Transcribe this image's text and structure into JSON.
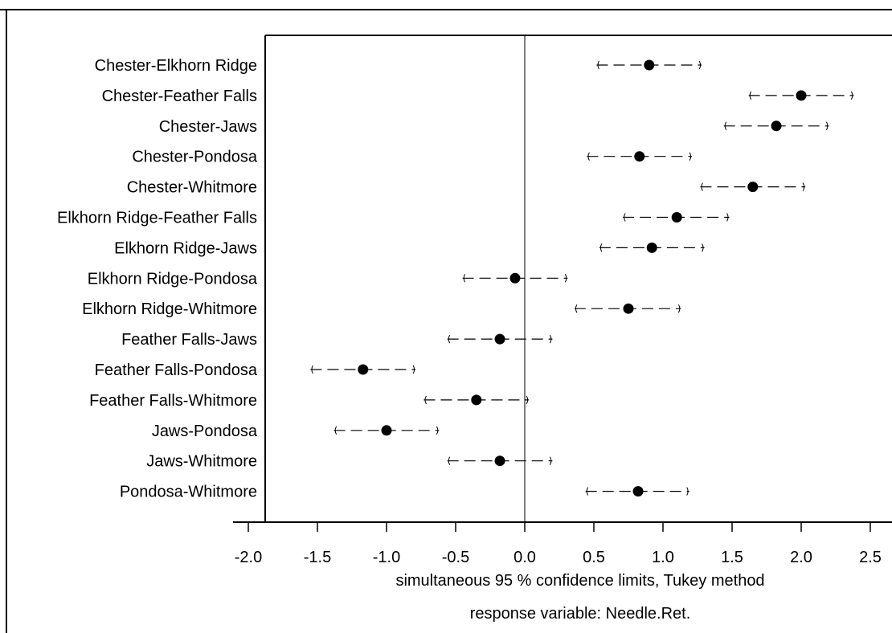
{
  "chart_data": {
    "type": "scatter",
    "title": "",
    "xlabel": "",
    "ylabel": "",
    "xlim": [
      -2.0,
      2.5
    ],
    "x_ticks": [
      "-2.0",
      "-1.5",
      "-1.0",
      "-0.5",
      "0.0",
      "0.5",
      "1.0",
      "1.5",
      "2.0",
      "2.5"
    ],
    "reference_line": 0.0,
    "grid": false,
    "legend": "none",
    "comparisons": [
      {
        "label": "Chester-Elkhorn Ridge",
        "estimate": 0.9,
        "lower": 0.52,
        "upper": 1.28
      },
      {
        "label": "Chester-Feather Falls",
        "estimate": 2.0,
        "lower": 1.62,
        "upper": 2.38
      },
      {
        "label": "Chester-Jaws",
        "estimate": 1.82,
        "lower": 1.44,
        "upper": 2.2
      },
      {
        "label": "Chester-Pondosa",
        "estimate": 0.83,
        "lower": 0.45,
        "upper": 1.21
      },
      {
        "label": "Chester-Whitmore",
        "estimate": 1.65,
        "lower": 1.27,
        "upper": 2.03
      },
      {
        "label": "Elkhorn Ridge-Feather Falls",
        "estimate": 1.1,
        "lower": 0.71,
        "upper": 1.48
      },
      {
        "label": "Elkhorn Ridge-Jaws",
        "estimate": 0.92,
        "lower": 0.54,
        "upper": 1.3
      },
      {
        "label": "Elkhorn Ridge-Pondosa",
        "estimate": -0.07,
        "lower": -0.45,
        "upper": 0.31
      },
      {
        "label": "Elkhorn Ridge-Whitmore",
        "estimate": 0.75,
        "lower": 0.36,
        "upper": 1.13
      },
      {
        "label": "Feather Falls-Jaws",
        "estimate": -0.18,
        "lower": -0.56,
        "upper": 0.2
      },
      {
        "label": "Feather Falls-Pondosa",
        "estimate": -1.17,
        "lower": -1.55,
        "upper": -0.79
      },
      {
        "label": "Feather Falls-Whitmore",
        "estimate": -0.35,
        "lower": -0.73,
        "upper": 0.03
      },
      {
        "label": "Jaws-Pondosa",
        "estimate": -1.0,
        "lower": -1.38,
        "upper": -0.62
      },
      {
        "label": "Jaws-Whitmore",
        "estimate": -0.18,
        "lower": -0.56,
        "upper": 0.2
      },
      {
        "label": "Pondosa-Whitmore",
        "estimate": 0.82,
        "lower": 0.44,
        "upper": 1.19
      }
    ],
    "notes": [
      "simultaneous  95 % confidence limits, Tukey method",
      "response variable: Needle.Ret."
    ]
  }
}
